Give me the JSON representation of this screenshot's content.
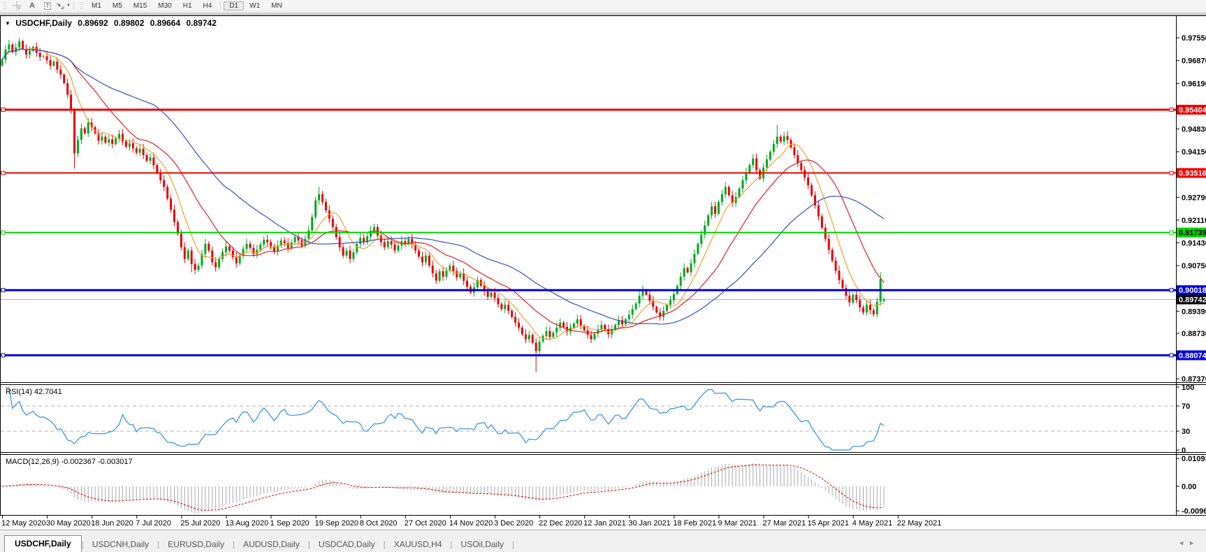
{
  "toolbar": {
    "tools": [
      {
        "name": "crosshair-icon"
      },
      {
        "name": "text-label-icon",
        "glyph": "A"
      },
      {
        "name": "text-box-icon",
        "glyph": "T"
      },
      {
        "name": "shapes-icon"
      }
    ],
    "timeframes": [
      "M1",
      "M5",
      "M15",
      "M30",
      "H1",
      "H4",
      "D1",
      "W1",
      "MN"
    ],
    "active_timeframe": "D1"
  },
  "chart": {
    "symbol": "USDCHF,Daily",
    "open": "0.89692",
    "high": "0.89802",
    "low": "0.89664",
    "close": "0.89742",
    "collapse_glyph": "▼"
  },
  "price_axis": {
    "ticks": [
      "0.97550",
      "0.96870",
      "0.96190",
      "0.94830",
      "0.94150",
      "0.92790",
      "0.92110",
      "0.91430",
      "0.90750",
      "0.89390",
      "0.88730",
      "0.87370"
    ],
    "levels": [
      {
        "label": "0.95404",
        "color": "#ee0000",
        "text": "#ffffff",
        "width": 3
      },
      {
        "label": "0.93516",
        "color": "#ee0000",
        "text": "#ffffff",
        "width": 2
      },
      {
        "label": "0.91739",
        "color": "#00d500",
        "text": "#000000",
        "width": 2
      },
      {
        "label": "0.90018",
        "color": "#0000e0",
        "text": "#ffffff",
        "width": 3
      },
      {
        "label": "0.88074",
        "color": "#0000e0",
        "text": "#ffffff",
        "width": 3
      }
    ],
    "current": {
      "label": "0.89742",
      "line_color": "#b4b4b4",
      "bg": "#000000",
      "text": "#ffffff"
    }
  },
  "indicators": {
    "rsi": {
      "label": "RSI(14) 42.7041",
      "ticks": [
        "100",
        "70",
        "30",
        "0"
      ],
      "level_lines": [
        70,
        30
      ],
      "line_color": "#2f8fe0"
    },
    "macd": {
      "label": "MACD(12,26,9) -0.002367 -0.003017",
      "ticks": [
        "0.010933",
        "0.00",
        "-0.009653"
      ],
      "histogram_color": "#a9a9a9",
      "signal_color": "#e00000"
    }
  },
  "date_axis": [
    "12 May 2020",
    "30 May 2020",
    "18 Jun 2020",
    "7 Jul 2020",
    "25 Jul 2020",
    "13 Aug 2020",
    "1 Sep 2020",
    "19 Sep 2020",
    "8 Oct 2020",
    "27 Oct 2020",
    "14 Nov 2020",
    "3 Dec 2020",
    "22 Dec 2020",
    "12 Jan 2021",
    "30 Jan 2021",
    "18 Feb 2021",
    "9 Mar 2021",
    "27 Mar 2021",
    "15 Apr 2021",
    "4 May 2021",
    "22 May 2021"
  ],
  "tabs": {
    "items": [
      "USDCHF,Daily",
      "USDCNH,Daily",
      "EURUSD,Daily",
      "AUDUSD,Daily",
      "USDCAD,Daily",
      "XAUUSD,H4",
      "USOil,Daily"
    ],
    "active": "USDCHF,Daily"
  },
  "chart_data": {
    "type": "candlestick",
    "symbol": "USDCHF",
    "timeframe": "Daily",
    "bars_per_date_label": 13,
    "price_range_visible": [
      0.8727,
      0.9822
    ],
    "rsi_range": [
      0,
      100
    ],
    "macd_value_range": [
      -0.01125,
      0.01235
    ],
    "bull_color": "#00a81e",
    "bear_color": "#e60000",
    "moving_averages": [
      {
        "period": 8,
        "color": "#f0a030"
      },
      {
        "period": 20,
        "color": "#e02020"
      },
      {
        "period": 45,
        "color": "#3353c0"
      }
    ],
    "closes": [
      0.969,
      0.972,
      0.9735,
      0.9712,
      0.9726,
      0.9745,
      0.9722,
      0.9705,
      0.9716,
      0.9728,
      0.971,
      0.9698,
      0.97,
      0.9688,
      0.9672,
      0.9684,
      0.966,
      0.9645,
      0.962,
      0.9585,
      0.954,
      0.941,
      0.945,
      0.9485,
      0.947,
      0.9502,
      0.9488,
      0.947,
      0.9448,
      0.946,
      0.9442,
      0.9452,
      0.9438,
      0.9455,
      0.9468,
      0.9446,
      0.943,
      0.944,
      0.9425,
      0.9412,
      0.9424,
      0.9405,
      0.9388,
      0.9398,
      0.9375,
      0.9352,
      0.933,
      0.931,
      0.9275,
      0.9242,
      0.9205,
      0.917,
      0.913,
      0.9095,
      0.912,
      0.908,
      0.9062,
      0.9075,
      0.911,
      0.914,
      0.912,
      0.9085,
      0.907,
      0.9095,
      0.9115,
      0.9132,
      0.912,
      0.91,
      0.9082,
      0.9105,
      0.9125,
      0.914,
      0.9128,
      0.911,
      0.9122,
      0.9138,
      0.9152,
      0.9145,
      0.913,
      0.9118,
      0.9135,
      0.915,
      0.9142,
      0.9128,
      0.9145,
      0.916,
      0.915,
      0.9135,
      0.9155,
      0.918,
      0.922,
      0.927,
      0.9288,
      0.9265,
      0.924,
      0.9215,
      0.919,
      0.916,
      0.913,
      0.9105,
      0.912,
      0.9095,
      0.9115,
      0.914,
      0.9158,
      0.9145,
      0.9162,
      0.9178,
      0.919,
      0.9165,
      0.9145,
      0.913,
      0.9148,
      0.9138,
      0.912,
      0.9135,
      0.9148,
      0.914,
      0.9155,
      0.9138,
      0.912,
      0.9102,
      0.9085,
      0.9105,
      0.9075,
      0.9052,
      0.903,
      0.9058,
      0.9042,
      0.906,
      0.9075,
      0.9058,
      0.904,
      0.9052,
      0.903,
      0.9012,
      0.8995,
      0.901,
      0.9032,
      0.9015,
      0.8998,
      0.8982,
      0.8995,
      0.8978,
      0.896,
      0.8945,
      0.8958,
      0.894,
      0.8922,
      0.8905,
      0.889,
      0.887,
      0.8855,
      0.8868,
      0.8845,
      0.882,
      0.8848,
      0.8865,
      0.888,
      0.8862,
      0.8875,
      0.889,
      0.8905,
      0.8892,
      0.8878,
      0.889,
      0.8902,
      0.8915,
      0.8895,
      0.8882,
      0.8868,
      0.8855,
      0.8872,
      0.8885,
      0.8898,
      0.8885,
      0.887,
      0.8885,
      0.8898,
      0.8912,
      0.89,
      0.8915,
      0.8928,
      0.8945,
      0.8962,
      0.8985,
      0.9002,
      0.8988,
      0.897,
      0.8952,
      0.8935,
      0.8922,
      0.894,
      0.8958,
      0.8972,
      0.899,
      0.9015,
      0.9042,
      0.9068,
      0.9055,
      0.9082,
      0.911,
      0.914,
      0.9168,
      0.9195,
      0.9225,
      0.9252,
      0.923,
      0.9265,
      0.9288,
      0.931,
      0.9285,
      0.9262,
      0.928,
      0.9305,
      0.933,
      0.9352,
      0.9375,
      0.9395,
      0.936,
      0.9335,
      0.9368,
      0.9392,
      0.9415,
      0.9438,
      0.946,
      0.9445,
      0.9462,
      0.945,
      0.9428,
      0.9405,
      0.9382,
      0.936,
      0.9338,
      0.9315,
      0.9285,
      0.9255,
      0.9222,
      0.9188,
      0.9155,
      0.9122,
      0.909,
      0.906,
      0.9032,
      0.9008,
      0.8985,
      0.8965,
      0.8988,
      0.8972,
      0.895,
      0.8935,
      0.8958,
      0.8942,
      0.893,
      0.8968,
      0.9035,
      0.8974
    ],
    "open_overrides": {
      "0": 0.9672,
      "256": 0.8969
    },
    "wick_overrides": {
      "5": {
        "h": 0.9755
      },
      "21": {
        "l": 0.9365
      },
      "55": {
        "l": 0.9055
      },
      "92": {
        "h": 0.931
      },
      "155": {
        "l": 0.8757
      },
      "225": {
        "h": 0.9495
      },
      "253": {
        "l": 0.8922
      },
      "255": {
        "h": 0.9055
      },
      "256": {
        "h": 0.898,
        "l": 0.8966
      }
    }
  }
}
